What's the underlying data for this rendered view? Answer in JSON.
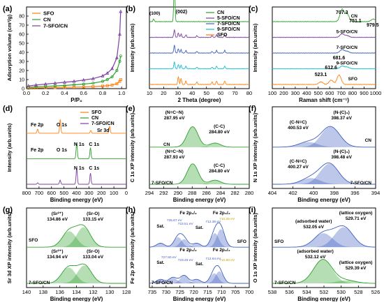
{
  "chart_data": [
    {
      "id": "a",
      "panel_label": "(a)",
      "type": "line",
      "xlabel": "P/P₀",
      "ylabel": "Adsorption volume (cm³/g)",
      "xlim": [
        0,
        1.05
      ],
      "ylim": [
        0,
        90
      ],
      "xticks": [
        "0.0",
        "0.2",
        "0.4",
        "0.6",
        "0.8",
        "1.0"
      ],
      "xtick_values": [
        0,
        0.2,
        0.4,
        0.6,
        0.8,
        1.0
      ],
      "yticks": [
        "0",
        "10",
        "20",
        "30",
        "40",
        "50",
        "60",
        "70",
        "80"
      ],
      "ytick_values": [
        0,
        10,
        20,
        30,
        40,
        50,
        60,
        70,
        80
      ],
      "legend": [
        "SFO",
        "CN",
        "7-SFO/CN"
      ],
      "series": [
        {
          "name": "SFO",
          "color": "#ff7f0e",
          "marker": "square",
          "x": [
            0.02,
            0.1,
            0.2,
            0.3,
            0.4,
            0.5,
            0.6,
            0.7,
            0.8,
            0.85,
            0.9,
            0.95,
            0.98,
            0.99
          ],
          "y": [
            0.5,
            0.8,
            1.0,
            1.2,
            1.4,
            1.6,
            1.9,
            2.2,
            2.8,
            3.3,
            4.0,
            5.5,
            8,
            10
          ]
        },
        {
          "name": "CN",
          "color": "#2ca02c",
          "marker": "circle",
          "x": [
            0.02,
            0.1,
            0.2,
            0.3,
            0.4,
            0.5,
            0.6,
            0.7,
            0.8,
            0.85,
            0.9,
            0.95,
            0.98,
            0.99
          ],
          "y": [
            1.5,
            2.0,
            2.5,
            3.0,
            3.5,
            4.2,
            5.0,
            6.0,
            8.0,
            10,
            13,
            20,
            30,
            36
          ]
        },
        {
          "name": "7-SFO/CN",
          "color": "#7b3fa0",
          "marker": "triangle",
          "x": [
            0.02,
            0.1,
            0.2,
            0.3,
            0.4,
            0.5,
            0.6,
            0.7,
            0.8,
            0.85,
            0.9,
            0.95,
            0.98,
            0.99
          ],
          "y": [
            3,
            4,
            5,
            6,
            7,
            8,
            9.5,
            11,
            14,
            17,
            22,
            34,
            60,
            85
          ]
        }
      ]
    },
    {
      "id": "b",
      "panel_label": "(b)",
      "type": "line",
      "xlabel": "2 Theta (degree)",
      "ylabel": "Intensity (arb.units)",
      "xlim": [
        10,
        80
      ],
      "xticks": [
        "10",
        "20",
        "30",
        "40",
        "50",
        "60",
        "70",
        "80"
      ],
      "xtick_values": [
        10,
        20,
        30,
        40,
        50,
        60,
        70,
        80
      ],
      "legend": [
        "CN",
        "5-SFO/CN",
        "7-SFO/CN",
        "9-SFO/CN",
        "SFO"
      ],
      "annotations": [
        "(002)",
        "(100)"
      ],
      "series": [
        {
          "name": "CN",
          "color": "#2ca02c",
          "offset": 4,
          "peaks": [
            [
              13.0,
              0.3
            ],
            [
              27.5,
              4.5
            ]
          ]
        },
        {
          "name": "5-SFO/CN",
          "color": "#7b3fa0",
          "offset": 3,
          "peaks": [
            [
              27.5,
              0.9
            ],
            [
              30.3,
              0.5
            ],
            [
              32.2,
              0.4
            ],
            [
              35.6,
              0.3
            ],
            [
              43.3,
              0.2
            ],
            [
              53.9,
              0.2
            ],
            [
              57.1,
              0.3
            ],
            [
              62.8,
              0.3
            ]
          ]
        },
        {
          "name": "7-SFO/CN",
          "color": "#3f5fc0",
          "offset": 2,
          "peaks": [
            [
              27.5,
              0.9
            ],
            [
              30.3,
              0.5
            ],
            [
              32.2,
              0.4
            ],
            [
              35.6,
              0.3
            ],
            [
              43.3,
              0.2
            ],
            [
              53.9,
              0.2
            ],
            [
              57.1,
              0.3
            ],
            [
              62.8,
              0.3
            ]
          ]
        },
        {
          "name": "9-SFO/CN",
          "color": "#17becf",
          "offset": 1,
          "peaks": [
            [
              27.5,
              0.8
            ],
            [
              30.3,
              0.5
            ],
            [
              32.2,
              0.4
            ],
            [
              35.6,
              0.3
            ],
            [
              43.3,
              0.2
            ],
            [
              53.9,
              0.2
            ],
            [
              57.1,
              0.3
            ],
            [
              62.8,
              0.3
            ]
          ]
        },
        {
          "name": "SFO",
          "color": "#ff7f0e",
          "offset": 0,
          "peaks": [
            [
              30.3,
              0.9
            ],
            [
              32.2,
              0.7
            ],
            [
              35.6,
              0.4
            ],
            [
              43.3,
              0.3
            ],
            [
              53.9,
              0.3
            ],
            [
              57.1,
              0.4
            ],
            [
              62.8,
              0.4
            ]
          ]
        }
      ]
    },
    {
      "id": "c",
      "panel_label": "(c)",
      "type": "line",
      "xlabel": "Raman shift (cm⁻¹)",
      "ylabel": "Intensity (arb.units)",
      "xlim": [
        100,
        1000
      ],
      "xticks": [
        "100",
        "200",
        "300",
        "400",
        "500",
        "600",
        "700",
        "800",
        "900",
        "1000"
      ],
      "xtick_values": [
        100,
        200,
        300,
        400,
        500,
        600,
        700,
        800,
        900,
        1000
      ],
      "annotations": [
        "707.3",
        "751.1",
        "979.5",
        "681.6",
        "612.6",
        "523.1"
      ],
      "series": [
        {
          "name": "CN",
          "color": "#2ca02c",
          "offset": 4,
          "peaks": [
            [
              707.3,
              1.4
            ],
            [
              751.1,
              0.9
            ],
            [
              979.5,
              0.3
            ]
          ]
        },
        {
          "name": "5-SFO/CN",
          "color": "#7b3fa0",
          "offset": 3,
          "peaks": [
            [
              707.3,
              0.4
            ],
            [
              751.1,
              0.2
            ]
          ]
        },
        {
          "name": "7-SFO/CN",
          "color": "#3f5fc0",
          "offset": 2,
          "peaks": [
            [
              707.3,
              0.4
            ],
            [
              751.1,
              0.2
            ]
          ]
        },
        {
          "name": "9-SFO/CN",
          "color": "#17becf",
          "offset": 1,
          "peaks": [
            [
              707.3,
              0.3
            ],
            [
              751.1,
              0.2
            ]
          ]
        },
        {
          "name": "SFO",
          "color": "#ff7f0e",
          "offset": 0,
          "peaks": [
            [
              523.1,
              0.3
            ],
            [
              612.6,
              0.5
            ],
            [
              681.6,
              1.1
            ]
          ]
        }
      ]
    },
    {
      "id": "d",
      "panel_label": "(d)",
      "type": "line",
      "xlabel": "Binding energy (eV)",
      "ylabel": "Intensity (arb.units)",
      "xlim": [
        800,
        0
      ],
      "reversed": true,
      "xticks": [
        "800",
        "700",
        "600",
        "500",
        "400",
        "300",
        "200",
        "100",
        "0"
      ],
      "xtick_values": [
        800,
        700,
        600,
        500,
        400,
        300,
        200,
        100,
        0
      ],
      "legend": [
        "SFO",
        "CN",
        "7-SFO/CN"
      ],
      "annotations": [
        "Fe 2p",
        "O 1s",
        "Sr 3d",
        "N 1s",
        "C 1s",
        "Fe 2p",
        "O 1s",
        "N 1s",
        "C 1s"
      ],
      "series": [
        {
          "name": "SFO",
          "color": "#ff7f0e",
          "offset": 2,
          "peaks": [
            [
              711,
              0.3
            ],
            [
              530,
              1.0
            ],
            [
              285,
              0.2
            ],
            [
              134,
              0.5
            ]
          ]
        },
        {
          "name": "CN",
          "color": "#2ca02c",
          "offset": 1,
          "peaks": [
            [
              398,
              1.2
            ],
            [
              288,
              0.8
            ]
          ]
        },
        {
          "name": "7-SFO/CN",
          "color": "#7b3fa0",
          "offset": 0,
          "peaks": [
            [
              711,
              0.1
            ],
            [
              531,
              0.3
            ],
            [
              398,
              1.2
            ],
            [
              288,
              0.8
            ]
          ]
        }
      ]
    },
    {
      "id": "e",
      "panel_label": "(e)",
      "type": "line",
      "xlabel": "Binding energy (eV)",
      "ylabel": "C 1s XP intensity (arb.units)",
      "xlim": [
        294,
        280
      ],
      "reversed": true,
      "xticks": [
        "294",
        "292",
        "290",
        "288",
        "286",
        "284",
        "282",
        "280"
      ],
      "xtick_values": [
        294,
        292,
        290,
        288,
        286,
        284,
        282,
        280
      ],
      "annotations": [
        "(N=C−N)",
        "287.95 eV",
        "(C-C)",
        "284.80 eV",
        "CN",
        "(N=C−N)",
        "287.93 eV",
        "(C-C)",
        "284.80 eV",
        "7-SFO/CN"
      ],
      "series": [
        {
          "name": "CN",
          "color": "#2ca02c",
          "offset": 1,
          "peaks": [
            [
              287.95,
              1.0
            ],
            [
              284.8,
              0.2
            ]
          ]
        },
        {
          "name": "7-SFO/CN",
          "color": "#2ca02c",
          "offset": 0,
          "peaks": [
            [
              287.93,
              1.0
            ],
            [
              284.8,
              0.2
            ]
          ]
        }
      ]
    },
    {
      "id": "f",
      "panel_label": "(f)",
      "type": "line",
      "xlabel": "Binding energy (eV)",
      "ylabel": "N 1s XP intensity (arb.units)",
      "xlim": [
        404,
        394
      ],
      "reversed": true,
      "xticks": [
        "404",
        "402",
        "400",
        "398",
        "396",
        "394"
      ],
      "xtick_values": [
        404,
        402,
        400,
        398,
        396,
        394
      ],
      "annotations": [
        "(N-(C)₃)",
        "398.37 eV",
        "(C-N=C)",
        "400.53 eV",
        "CN",
        "(N-(C)₃)",
        "398.48 eV",
        "(C-N=C)",
        "400.27 eV",
        "7-SFO/CN"
      ],
      "series": [
        {
          "name": "CN",
          "color": "#3f5fc0",
          "offset": 1,
          "peaks": [
            [
              398.37,
              1.0
            ],
            [
              400.53,
              0.25
            ]
          ]
        },
        {
          "name": "7-SFO/CN",
          "color": "#3f5fc0",
          "offset": 0,
          "peaks": [
            [
              398.48,
              1.0
            ],
            [
              400.27,
              0.3
            ]
          ]
        }
      ]
    },
    {
      "id": "g",
      "panel_label": "(g)",
      "type": "line",
      "xlabel": "Binding energy (eV)",
      "ylabel": "Sr 3d XP intensity (arb.units)",
      "xlim": [
        140,
        128
      ],
      "reversed": true,
      "xticks": [
        "140",
        "138",
        "136",
        "134",
        "132",
        "130",
        "128"
      ],
      "xtick_values": [
        140,
        138,
        136,
        134,
        132,
        130,
        128
      ],
      "annotations": [
        "(Sr²⁺)",
        "134.86 eV",
        "(Sr-O)",
        "133.15 eV",
        "SFO",
        "(Sr²⁺)",
        "134.94 eV",
        "(Sr-O)",
        "133.04 eV",
        "7-SFO/CN"
      ],
      "series": [
        {
          "name": "SFO",
          "color": "#2ca02c",
          "offset": 1,
          "peaks": [
            [
              134.86,
              0.8
            ],
            [
              133.15,
              1.0
            ]
          ]
        },
        {
          "name": "7-SFO/CN",
          "color": "#2ca02c",
          "offset": 0,
          "peaks": [
            [
              134.94,
              0.8
            ],
            [
              133.04,
              0.9
            ]
          ]
        }
      ]
    },
    {
      "id": "h",
      "panel_label": "(h)",
      "type": "line",
      "xlabel": "Binding energy (eV)",
      "ylabel": "Fe 2p XP intensity (arb.units)",
      "xlim": [
        736,
        700
      ],
      "reversed": true,
      "xticks": [
        "735",
        "730",
        "725",
        "720",
        "715",
        "710",
        "705",
        "700"
      ],
      "xtick_values": [
        735,
        730,
        725,
        720,
        715,
        710,
        705,
        700
      ],
      "annotations": [
        "Fe 2p₁/₂",
        "Fe 2p₃/₂",
        "Sat.",
        "725.67 eV",
        "723.51 eV",
        "Sat.",
        "712.38 eV",
        "710.25 eV",
        "SFO",
        "Fe 2p₁/₂",
        "Fe 2p₃/₂",
        "Sat.",
        "727.50 eV",
        "723.49 eV",
        "Sat.",
        "712.64 eV",
        "710.80 eV",
        "7-SFO/CN"
      ],
      "series": [
        {
          "name": "SFO",
          "color": "#3f5fc0",
          "offset": 1,
          "peaks": [
            [
              725.67,
              0.5
            ],
            [
              723.51,
              0.4
            ],
            [
              712.38,
              0.7
            ],
            [
              710.25,
              0.9
            ],
            [
              719,
              0.2
            ],
            [
              732,
              0.2
            ]
          ]
        },
        {
          "name": "7-SFO/CN",
          "color": "#3f5fc0",
          "offset": 0,
          "peaks": [
            [
              727.5,
              0.3
            ],
            [
              723.49,
              0.4
            ],
            [
              712.64,
              0.5
            ],
            [
              710.8,
              0.6
            ],
            [
              719,
              0.2
            ],
            [
              732,
              0.2
            ]
          ]
        }
      ]
    },
    {
      "id": "i",
      "panel_label": "(i)",
      "type": "line",
      "xlabel": "Binding energy (eV)",
      "ylabel": "O 1s XP intensity (arb.units)",
      "xlim": [
        538,
        526
      ],
      "reversed": true,
      "xticks": [
        "538",
        "536",
        "534",
        "532",
        "530",
        "528",
        "526"
      ],
      "xtick_values": [
        538,
        536,
        534,
        532,
        530,
        528,
        526
      ],
      "annotations": [
        "(lattice oxygen)",
        "529.71 eV",
        "(adsorbed water)",
        "532.05 eV",
        "SFO",
        "(adsorbed water)",
        "532.12 eV",
        "(lattice oxygen)",
        "529.39 eV",
        "7-SFO/CN"
      ],
      "series": [
        {
          "name": "SFO",
          "color": "#3f5fc0",
          "offset": 1,
          "peaks": [
            [
              529.71,
              1.0
            ],
            [
              532.05,
              0.7
            ]
          ]
        },
        {
          "name": "7-SFO/CN",
          "color": "#2ca02c",
          "offset": 0,
          "peaks": [
            [
              532.12,
              1.2
            ],
            [
              529.39,
              0.15
            ]
          ]
        }
      ]
    }
  ]
}
